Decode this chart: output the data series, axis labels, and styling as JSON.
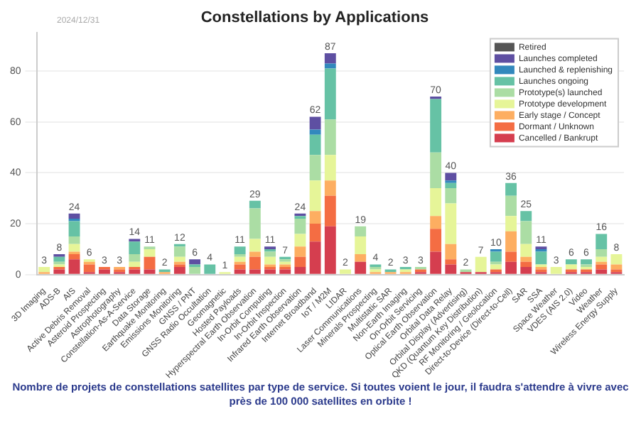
{
  "chart_data": {
    "type": "bar",
    "stacked": true,
    "title": "Constellations by Applications",
    "annotations": [
      "2024/12/31",
      "Nombre de projets de constellations satellites par type de service. Si toutes voient le jour, il faudra s'attendre à vivre avec près de 100 000 satellites en orbite !"
    ],
    "categories": [
      "3D Imaging",
      "ADS-B",
      "AIS",
      "Active Debris Removal",
      "Asteroid Prospecting",
      "Astrophotography",
      "Constellation-As-A-Service",
      "Data Storage",
      "Earthquake Monitoring",
      "Emissions Monitoring",
      "GNSS / PNT",
      "GNSS Radio Occultation",
      "Geomagnetic",
      "Hosted Payloads",
      "Hyperspectral Earth Observation",
      "In-Orbit Computing",
      "In-Orbit Inspection",
      "Infrared Earth Observation",
      "Internet Broadband",
      "IoT / M2M",
      "LIDAR",
      "Laser Communications",
      "Minerals Prospecting",
      "Multistatic SAR",
      "Non-Earth Imaging",
      "On-Orbit Servicing",
      "Optical Earth Observation",
      "Orbital Data Relay",
      "Orbital Display (Advertising)",
      "QKD (Quantum Key Distribution)",
      "RF Monitoring / Geolocation",
      "Direct-to-Device (Direct-to-Cell)",
      "SAR",
      "SSA",
      "Space Weather",
      "VDES (AIS 2.0)",
      "Video",
      "Weather",
      "Wireless Energy Supply"
    ],
    "series": [
      {
        "name": "Cancelled / Bankrupt",
        "color": "#d53e4f",
        "values": [
          0,
          2,
          6,
          1,
          2,
          1,
          2,
          2,
          0,
          3,
          0,
          0,
          0,
          2,
          2,
          2,
          2,
          3,
          13,
          19,
          0,
          5,
          0,
          0,
          0,
          1,
          9,
          4,
          1,
          1,
          1,
          5,
          3,
          1,
          0,
          1,
          1,
          2,
          1
        ]
      },
      {
        "name": "Dormant / Unknown",
        "color": "#f46d43",
        "values": [
          0,
          1,
          2,
          3,
          1,
          1,
          1,
          5,
          0,
          1,
          0,
          0,
          0,
          2,
          5,
          1,
          1,
          4,
          7,
          12,
          0,
          0,
          0,
          0,
          0,
          1,
          9,
          2,
          0,
          0,
          1,
          4,
          2,
          1,
          0,
          1,
          1,
          2,
          1
        ]
      },
      {
        "name": "Early stage / Concept",
        "color": "#fdae61",
        "values": [
          1,
          0,
          1,
          1,
          0,
          1,
          0,
          0,
          1,
          1,
          0,
          0,
          0,
          1,
          2,
          1,
          1,
          4,
          5,
          6,
          0,
          3,
          1,
          1,
          1,
          0,
          5,
          6,
          0,
          0,
          0,
          8,
          2,
          1,
          0,
          0,
          0,
          1,
          2
        ]
      },
      {
        "name": "Prototype development",
        "color": "#e6f598",
        "values": [
          2,
          1,
          3,
          1,
          0,
          0,
          2,
          3,
          0,
          2,
          0,
          0,
          1,
          2,
          5,
          3,
          1,
          5,
          12,
          10,
          2,
          7,
          1,
          0,
          1,
          0,
          11,
          16,
          0,
          6,
          2,
          6,
          5,
          1,
          3,
          2,
          1,
          2,
          4
        ]
      },
      {
        "name": "Prototype(s) launched",
        "color": "#abdda4",
        "values": [
          0,
          1,
          3,
          0,
          0,
          0,
          3,
          1,
          0,
          4,
          3,
          0,
          0,
          1,
          12,
          2,
          1,
          6,
          10,
          14,
          0,
          4,
          1,
          0,
          0,
          1,
          14,
          6,
          1,
          0,
          1,
          8,
          9,
          0,
          0,
          0,
          1,
          3,
          0
        ]
      },
      {
        "name": "Launches ongoing",
        "color": "#66c2a5",
        "values": [
          0,
          2,
          6,
          0,
          0,
          0,
          5,
          0,
          1,
          1,
          1,
          4,
          0,
          3,
          3,
          1,
          1,
          1,
          8,
          20,
          0,
          0,
          1,
          1,
          1,
          0,
          21,
          2,
          0,
          0,
          4,
          5,
          4,
          5,
          0,
          2,
          2,
          6,
          0
        ]
      },
      {
        "name": "Launched & replenishing",
        "color": "#3288bd",
        "values": [
          0,
          0,
          1,
          0,
          0,
          0,
          0,
          0,
          0,
          0,
          0,
          0,
          0,
          0,
          0,
          0,
          0,
          0,
          2,
          2,
          0,
          0,
          0,
          0,
          0,
          0,
          0,
          1,
          0,
          0,
          1,
          0,
          0,
          1,
          0,
          0,
          0,
          0,
          0
        ]
      },
      {
        "name": "Launches completed",
        "color": "#5e4fa2",
        "values": [
          0,
          1,
          2,
          0,
          0,
          0,
          1,
          0,
          0,
          0,
          2,
          0,
          0,
          0,
          0,
          1,
          0,
          1,
          5,
          4,
          0,
          0,
          0,
          0,
          0,
          0,
          1,
          3,
          0,
          0,
          0,
          0,
          0,
          1,
          0,
          0,
          0,
          0,
          0
        ]
      },
      {
        "name": "Retired",
        "color": "#555555",
        "values": [
          0,
          0,
          0,
          0,
          0,
          0,
          0,
          0,
          0,
          0,
          0,
          0,
          0,
          0,
          0,
          0,
          0,
          0,
          0,
          0,
          0,
          0,
          0,
          0,
          0,
          0,
          0,
          0,
          0,
          0,
          0,
          0,
          0,
          0,
          0,
          0,
          0,
          0,
          0
        ]
      }
    ],
    "totals": [
      "3",
      "8",
      "24",
      "6",
      "3",
      "3",
      "14",
      "11",
      "2",
      "12",
      "6",
      "4",
      "1",
      "11",
      "29",
      "11",
      "7",
      "24",
      "62",
      "87",
      "2",
      "19",
      "4",
      "2",
      "3",
      "3",
      "70",
      "40",
      "2",
      "7",
      "10",
      "36",
      "25",
      "11",
      "3",
      "6",
      "6",
      "16",
      "8"
    ],
    "ylim": [
      0,
      95
    ],
    "yticks": [
      0,
      20,
      40,
      60,
      80
    ],
    "grid": "y",
    "legend": "top right"
  }
}
